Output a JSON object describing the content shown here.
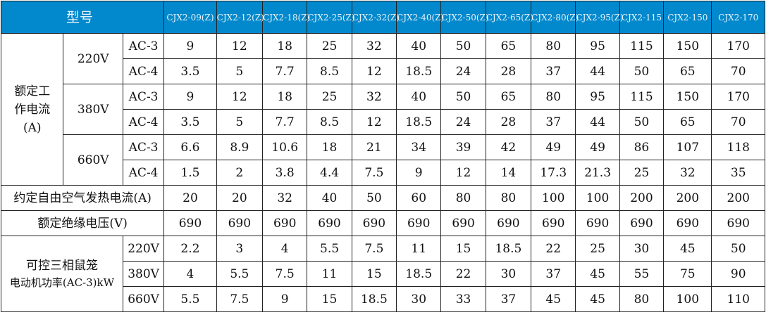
{
  "header": {
    "title": "型号",
    "models": [
      "CJX2-09(Z)",
      "CJX2-12(Z)",
      "CJX2-18(Z)",
      "CJX2-25(Z)",
      "CJX2-32(Z)",
      "CJX2-40(Z)",
      "CJX2-50(Z)",
      "CJX2-65(Z)",
      "CJX2-80(Z)",
      "CJX2-95(Z)",
      "CJX2-115",
      "CJX2-150",
      "CJX2-170"
    ],
    "color": "#0288cc"
  },
  "rated_current": {
    "label": "额定工作电流(A)",
    "groups": [
      {
        "voltage": "220V",
        "rows": [
          {
            "cat": "AC-3",
            "values": [
              "9",
              "12",
              "18",
              "25",
              "32",
              "40",
              "50",
              "65",
              "80",
              "95",
              "115",
              "150",
              "170"
            ]
          },
          {
            "cat": "AC-4",
            "values": [
              "3.5",
              "5",
              "7.7",
              "8.5",
              "12",
              "18.5",
              "24",
              "28",
              "37",
              "44",
              "50",
              "65",
              "70"
            ]
          }
        ]
      },
      {
        "voltage": "380V",
        "rows": [
          {
            "cat": "AC-3",
            "values": [
              "9",
              "12",
              "18",
              "25",
              "32",
              "40",
              "50",
              "65",
              "80",
              "95",
              "115",
              "150",
              "170"
            ]
          },
          {
            "cat": "AC-4",
            "values": [
              "3.5",
              "5",
              "7.7",
              "8.5",
              "12",
              "18.5",
              "24",
              "28",
              "37",
              "44",
              "50",
              "65",
              "70"
            ]
          }
        ]
      },
      {
        "voltage": "660V",
        "rows": [
          {
            "cat": "AC-3",
            "values": [
              "6.6",
              "8.9",
              "10.6",
              "18",
              "21",
              "34",
              "39",
              "42",
              "49",
              "49",
              "86",
              "107",
              "118"
            ]
          },
          {
            "cat": "AC-4",
            "values": [
              "1.5",
              "2",
              "3.8",
              "4.4",
              "7.5",
              "9",
              "12",
              "14",
              "17.3",
              "21.3",
              "25",
              "32",
              "35"
            ]
          }
        ]
      }
    ]
  },
  "thermal_current": {
    "label": "约定自由空气发热电流(A)",
    "values": [
      "20",
      "20",
      "32",
      "40",
      "50",
      "60",
      "80",
      "80",
      "100",
      "100",
      "200",
      "200",
      "200"
    ]
  },
  "insulation_voltage": {
    "label": "额定绝缘电压(V)",
    "values": [
      "690",
      "690",
      "690",
      "690",
      "690",
      "690",
      "690",
      "690",
      "690",
      "690",
      "690",
      "690",
      "690"
    ]
  },
  "motor_power": {
    "label_line1": "可控三相鼠笼",
    "label_line2": "电动机功率(AC-3)kW",
    "rows": [
      {
        "voltage": "220V",
        "values": [
          "2.2",
          "3",
          "4",
          "5.5",
          "7.5",
          "11",
          "15",
          "18.5",
          "22",
          "25",
          "30",
          "45",
          "50"
        ]
      },
      {
        "voltage": "380V",
        "values": [
          "4",
          "5.5",
          "7.5",
          "11",
          "15",
          "18.5",
          "22",
          "30",
          "37",
          "45",
          "55",
          "75",
          "90"
        ]
      },
      {
        "voltage": "660V",
        "values": [
          "5.5",
          "7.5",
          "9",
          "15",
          "18.5",
          "30",
          "33",
          "37",
          "45",
          "45",
          "80",
          "100",
          "110"
        ]
      }
    ]
  }
}
